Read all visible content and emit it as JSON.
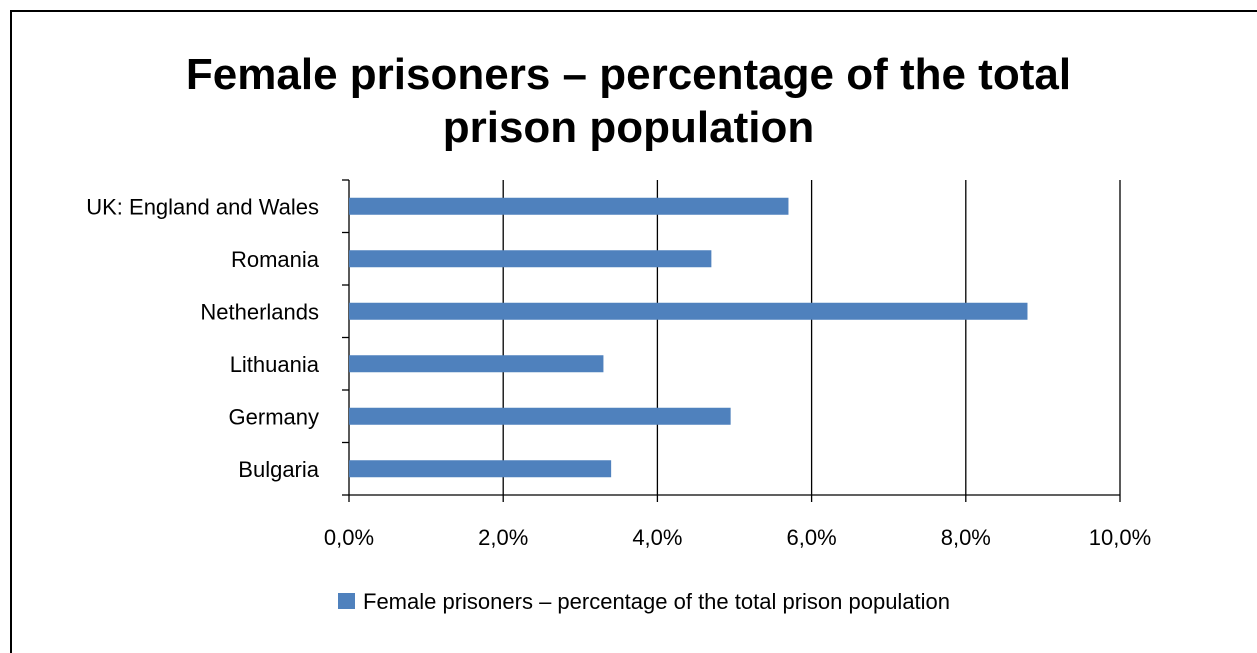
{
  "chart_data": {
    "type": "bar",
    "orientation": "horizontal",
    "title_lines": [
      "Female prisoners – percentage of the total",
      "prison population"
    ],
    "categories": [
      "UK: England and Wales",
      "Romania",
      "Netherlands",
      "Lithuania",
      "Germany",
      "Bulgaria"
    ],
    "series": [
      {
        "name": "Female prisoners – percentage of the total prison population",
        "values": [
          5.7,
          4.7,
          8.8,
          3.3,
          4.95,
          3.4
        ],
        "color": "#4f81bd"
      }
    ],
    "x_ticks": [
      "0,0%",
      "2,0%",
      "4,0%",
      "6,0%",
      "8,0%",
      "10,0%"
    ],
    "xlim": [
      0,
      10
    ],
    "xlabel": "",
    "ylabel": "",
    "grid": "vertical",
    "legend": "bottom"
  }
}
